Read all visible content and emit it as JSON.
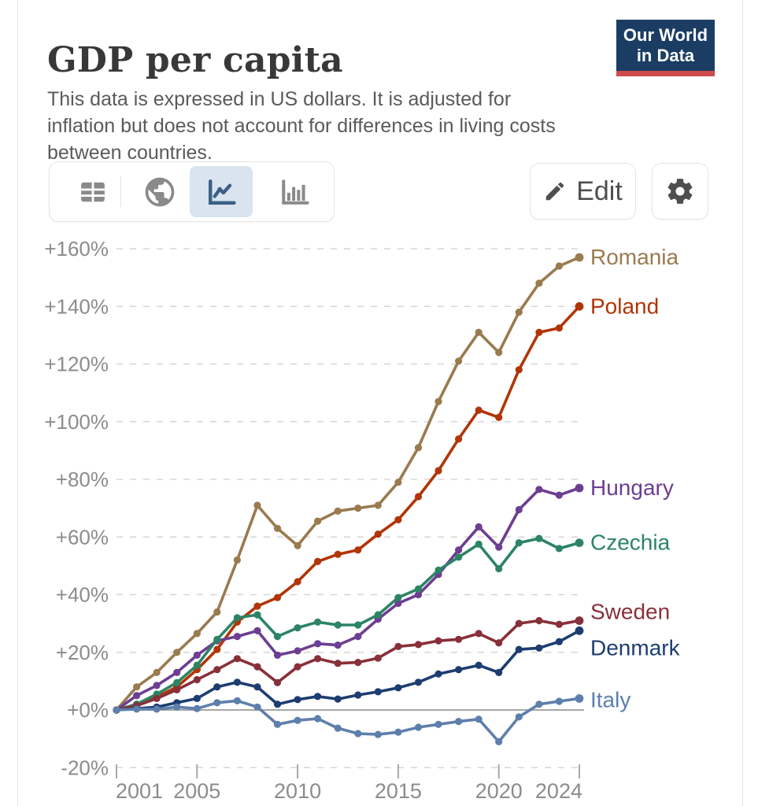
{
  "header": {
    "title": "GDP per capita",
    "subtitle": "This data is expressed in US dollars. It is adjusted for inflation but does not account for differences in living costs between countries.",
    "logo": {
      "line1": "Our World",
      "line2": "in Data",
      "bg": "#1b3d63",
      "accent": "#ce4c4c"
    }
  },
  "toolbar": {
    "views": [
      {
        "name": "table-view",
        "active": false
      },
      {
        "name": "map-view",
        "active": false
      },
      {
        "name": "line-chart-view",
        "active": true
      },
      {
        "name": "bar-chart-view",
        "active": false
      }
    ],
    "edit_label": "Edit",
    "active_bg": "#d9e4ef",
    "icon_gray": "#8a8a8a",
    "icon_active": "#3d6085"
  },
  "chart_data": {
    "type": "line",
    "title": "GDP per capita",
    "xlabel": "",
    "ylabel": "",
    "unit": "%",
    "x": [
      2001,
      2002,
      2003,
      2004,
      2005,
      2006,
      2007,
      2008,
      2009,
      2010,
      2011,
      2012,
      2013,
      2014,
      2015,
      2016,
      2017,
      2018,
      2019,
      2020,
      2021,
      2022,
      2023,
      2024
    ],
    "xticks": [
      2001,
      2005,
      2010,
      2015,
      2020,
      2024
    ],
    "yticks": [
      -20,
      0,
      20,
      40,
      60,
      80,
      100,
      120,
      140,
      160
    ],
    "ylim": [
      -20,
      160
    ],
    "grid": true,
    "legend_position": "right-end-labels",
    "series": [
      {
        "name": "Romania",
        "color": "#9a7a4f",
        "label_dy": 0,
        "values": [
          0,
          8,
          13,
          20,
          26.5,
          34,
          52,
          71,
          63,
          57,
          65.5,
          69,
          70,
          71,
          79,
          91,
          107,
          121,
          131,
          124,
          138,
          148,
          154,
          157
        ]
      },
      {
        "name": "Poland",
        "color": "#b13507",
        "label_dy": 0,
        "values": [
          0,
          2,
          4.5,
          8,
          14,
          21,
          30.5,
          36,
          39,
          44.5,
          51.5,
          54,
          55.5,
          61,
          66,
          74,
          83,
          94,
          104,
          101.5,
          118,
          131,
          132.5,
          140
        ]
      },
      {
        "name": "Hungary",
        "color": "#6d3e91",
        "label_dy": 0,
        "values": [
          0,
          5,
          8.5,
          13,
          19,
          24,
          25.5,
          27.5,
          19,
          20.5,
          23,
          22.5,
          25.5,
          31.5,
          37,
          40,
          47,
          55.5,
          63.5,
          56.5,
          69.5,
          76.5,
          74.5,
          77
        ]
      },
      {
        "name": "Czechia",
        "color": "#2c8465",
        "label_dy": 0,
        "values": [
          0,
          2,
          5.5,
          9.5,
          15.5,
          24.5,
          32,
          33,
          25.5,
          28.5,
          30.5,
          29.5,
          29.5,
          33,
          39,
          42,
          48.5,
          53,
          57.5,
          49,
          58,
          59.5,
          56,
          58
        ]
      },
      {
        "name": "Sweden",
        "color": "#883039",
        "label_dy": -11,
        "values": [
          0,
          1.5,
          4,
          7,
          10.5,
          14,
          17.8,
          15,
          9.5,
          15,
          17.8,
          16.2,
          16.5,
          18,
          22,
          22.7,
          24,
          24.5,
          26.5,
          23.3,
          30,
          31,
          29.7,
          31
        ]
      },
      {
        "name": "Denmark",
        "color": "#1d3d70",
        "label_dy": 22,
        "values": [
          0,
          0.5,
          1,
          2.5,
          4,
          8,
          9.6,
          8,
          2,
          3.6,
          4.7,
          3.8,
          5.2,
          6.3,
          7.7,
          9.6,
          12.5,
          14,
          15.5,
          13,
          21,
          21.5,
          23.7,
          27.5
        ]
      },
      {
        "name": "Italy",
        "color": "#5e7fac",
        "label_dy": 2,
        "values": [
          0,
          0.3,
          0.3,
          1,
          0.5,
          2.5,
          3.2,
          1,
          -5,
          -3.6,
          -3,
          -6.3,
          -8.2,
          -8.5,
          -7.7,
          -6,
          -5,
          -4,
          -3.2,
          -11,
          -2.4,
          2,
          3,
          4
        ]
      }
    ]
  }
}
